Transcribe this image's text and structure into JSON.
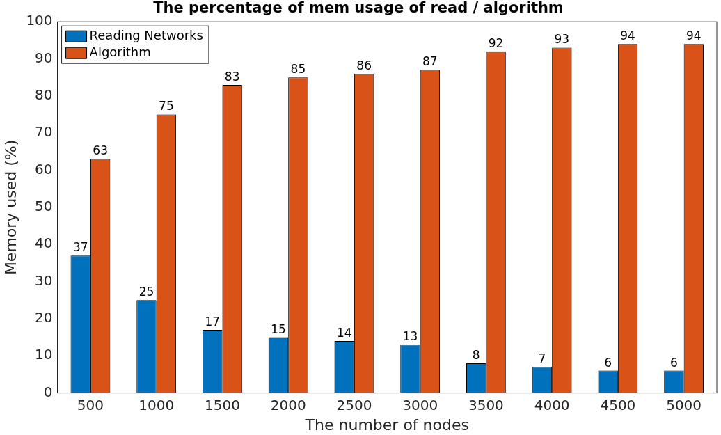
{
  "chart_data": {
    "type": "bar",
    "title": "The percentage of mem usage of read / algorithm",
    "xlabel": "The number of nodes",
    "ylabel": "Memory used (%)",
    "categories": [
      "500",
      "1000",
      "1500",
      "2000",
      "2500",
      "3000",
      "3500",
      "4000",
      "4500",
      "5000"
    ],
    "series": [
      {
        "name": "Reading Networks",
        "color": "#0072bd",
        "values": [
          37,
          25,
          17,
          15,
          14,
          13,
          8,
          7,
          6,
          6
        ]
      },
      {
        "name": "Algorithm",
        "color": "#d95319",
        "values": [
          63,
          75,
          83,
          85,
          86,
          87,
          92,
          93,
          94,
          94
        ]
      }
    ],
    "ylim": [
      0,
      100
    ],
    "yticks": [
      0,
      10,
      20,
      30,
      40,
      50,
      60,
      70,
      80,
      90,
      100
    ],
    "grid": false,
    "legend": "top left",
    "data_labels": true
  }
}
